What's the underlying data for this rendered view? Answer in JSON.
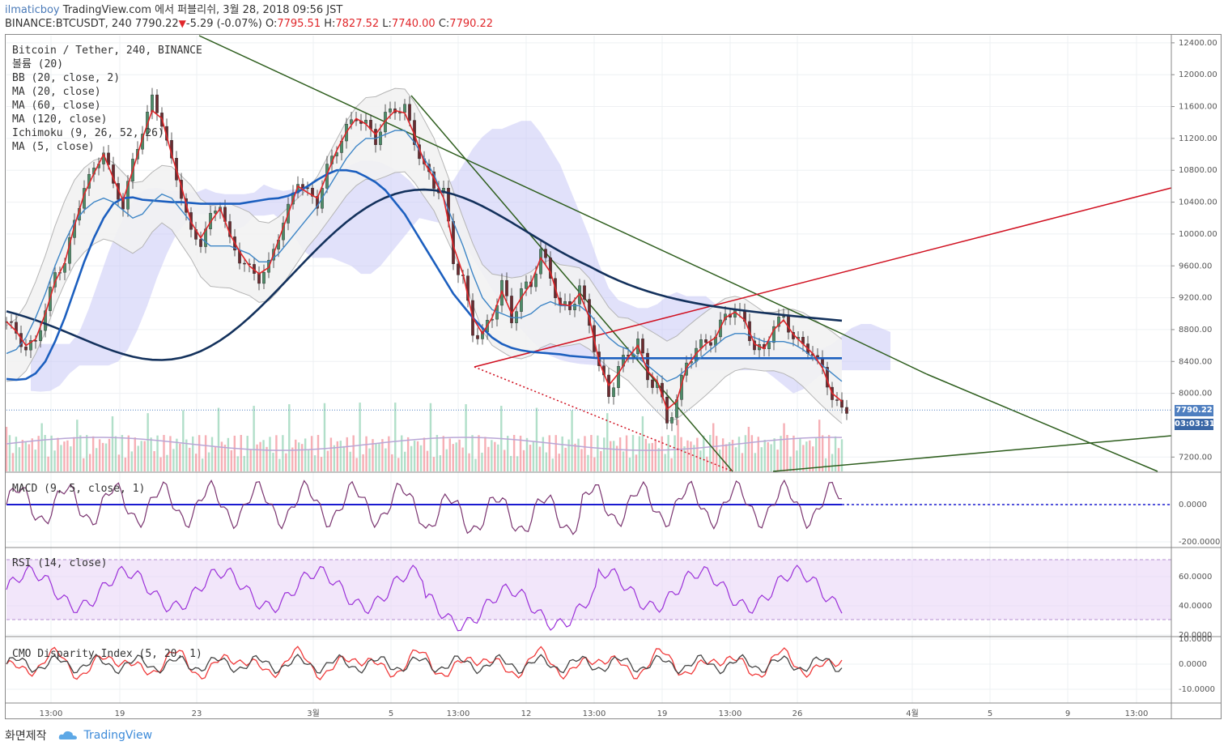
{
  "header": {
    "user": "ilmaticboy",
    "publish_text": "TradingView.com 에서 퍼블리쉬, 3월 28, 2018 09:56 JST",
    "symbol": "BINANCE:BTCUSDT, 240",
    "last": "7790.22",
    "change": "-5.29 (-0.07%)",
    "o_label": "O:",
    "o": "7795.51",
    "h_label": "H:",
    "h": "7827.52",
    "l_label": "L:",
    "l": "7740.00",
    "c_label": "C:",
    "c": "7790.22"
  },
  "legend": [
    "Bitcoin / Tether, 240, BINANCE",
    "볼륨 (20)",
    "BB (20, close, 2)",
    "MA (20, close)",
    "MA (60, close)",
    "MA (120, close)",
    "Ichimoku (9, 26, 52, 26)",
    "MA (5, close)"
  ],
  "panes": {
    "macd_label": "MACD (9, 5, close, 1)",
    "rsi_label": "RSI (14, close)",
    "cmo_label": "CMO Disparity Index (5, 20, 1)"
  },
  "price_tags": {
    "last": "7790.22",
    "countdown": "03:03:31"
  },
  "colors": {
    "up": "#53b987",
    "down": "#eb4d5c",
    "ma5": "#e0262a",
    "ma20": "#3d85c6",
    "ma60": "#1c5fbf",
    "ma120": "#13315c",
    "cloud": "#c9c9f5",
    "bb": "#b5b5b5",
    "trend_green": "#2e5e1e",
    "trend_red": "#d01020",
    "rsi": "#9b30d9",
    "macd": "#7a3470"
  },
  "chart_data": [
    {
      "type": "candlestick",
      "title": "Bitcoin / Tether, 240, BINANCE",
      "y_ticks": [
        "12400.00",
        "12000.00",
        "11600.00",
        "11200.00",
        "10800.00",
        "10400.00",
        "10000.00",
        "9600.00",
        "9200.00",
        "8800.00",
        "8400.00",
        "8000.00",
        "7200.00"
      ],
      "x_ticks": [
        "13:00",
        "19",
        "23",
        "3월",
        "5",
        "13:00",
        "12",
        "13:00",
        "19",
        "13:00",
        "26",
        "4월",
        "5",
        "9",
        "13:00"
      ],
      "ylim": [
        7020,
        12480
      ],
      "last_price": 7790.22,
      "close_path": [
        8900,
        8750,
        8550,
        8650,
        9050,
        9500,
        9650,
        10150,
        10600,
        10800,
        11050,
        10600,
        10350,
        10900,
        11300,
        11700,
        11400,
        10900,
        10500,
        10000,
        9900,
        10200,
        10400,
        9900,
        9700,
        9550,
        9450,
        9600,
        10000,
        10300,
        10700,
        10500,
        10400,
        10800,
        11100,
        11300,
        11500,
        11350,
        11200,
        11450,
        11600,
        11550,
        11200,
        10800,
        10650,
        10500,
        9700,
        9400,
        8800,
        8700,
        9000,
        9350,
        8950,
        9250,
        9400,
        9750,
        9500,
        9050,
        9100,
        9300,
        8900,
        8300,
        8000,
        8300,
        8500,
        8650,
        8200,
        8100,
        7650,
        7900,
        8400,
        8550,
        8650,
        8700,
        9000,
        9050,
        8900,
        8550,
        8550,
        8850,
        8950,
        8700,
        8600,
        8500,
        8300,
        7950,
        7790
      ],
      "ma5": [
        8900,
        8780,
        8600,
        8680,
        9000,
        9400,
        9640,
        10100,
        10500,
        10760,
        11000,
        10700,
        10420,
        10800,
        11200,
        11550,
        11450,
        11000,
        10600,
        10150,
        9950,
        10150,
        10320,
        10000,
        9780,
        9600,
        9500,
        9580,
        9920,
        10250,
        10600,
        10520,
        10450,
        10750,
        11050,
        11280,
        11450,
        11380,
        11250,
        11420,
        11550,
        11520,
        11250,
        10900,
        10700,
        10450,
        9850,
        9500,
        8950,
        8750,
        8950,
        9280,
        9000,
        9200,
        9380,
        9700,
        9520,
        9120,
        9100,
        9250,
        8950,
        8400,
        8100,
        8250,
        8450,
        8600,
        8280,
        8150,
        7800,
        7900,
        8320,
        8500,
        8620,
        8700,
        8950,
        9020,
        8920,
        8620,
        8560,
        8800,
        8920,
        8740,
        8620,
        8500,
        8320,
        8000,
        7900
      ],
      "ma20": [
        8500,
        8550,
        8700,
        8950,
        9250,
        9600,
        9900,
        10150,
        10300,
        10400,
        10450,
        10400,
        10300,
        10200,
        10250,
        10400,
        10500,
        10450,
        10300,
        10150,
        9950,
        9850,
        9850,
        9850,
        9800,
        9750,
        9650,
        9650,
        9750,
        9900,
        10050,
        10200,
        10350,
        10550,
        10750,
        10950,
        11100,
        11200,
        11200,
        11250,
        11300,
        11300,
        11150,
        10950,
        10750,
        10450,
        10150,
        9850,
        9500,
        9200,
        9050,
        9000,
        8950,
        8950,
        9000,
        9100,
        9150,
        9100,
        9100,
        9100,
        9000,
        8850,
        8700,
        8600,
        8550,
        8450,
        8350,
        8250,
        8150,
        8200,
        8300,
        8400,
        8500,
        8600,
        8700,
        8750,
        8750,
        8700,
        8650,
        8650,
        8650,
        8620,
        8550,
        8450,
        8350,
        8250,
        8150
      ],
      "ma60": [
        8180,
        8170,
        8180,
        8250,
        8400,
        8650,
        8950,
        9300,
        9650,
        9950,
        10200,
        10380,
        10450,
        10460,
        10430,
        10420,
        10410,
        10400,
        10400,
        10390,
        10380,
        10380,
        10380,
        10380,
        10380,
        10400,
        10420,
        10440,
        10450,
        10480,
        10530,
        10600,
        10680,
        10750,
        10800,
        10800,
        10780,
        10720,
        10650,
        10550,
        10400,
        10250,
        10050,
        9850,
        9650,
        9450,
        9250,
        9100,
        8950,
        8820,
        8700,
        8620,
        8570,
        8540,
        8520,
        8510,
        8500,
        8490,
        8470,
        8460,
        8450,
        8440,
        8440,
        8440,
        8440,
        8440,
        8440,
        8440,
        8440,
        8440,
        8440,
        8440,
        8440,
        8440,
        8440,
        8440,
        8440,
        8440,
        8440,
        8440,
        8440,
        8440,
        8440,
        8440,
        8440,
        8440,
        8440
      ]
    },
    {
      "type": "line",
      "title": "MACD (9, 5, close, 1)",
      "y_ticks": [
        "0.0000",
        "-200.0000"
      ]
    },
    {
      "type": "line",
      "title": "RSI (14, close)",
      "y_ticks": [
        "60.0000",
        "40.0000",
        "20.0000"
      ],
      "upper_band": 70,
      "lower_band": 30
    },
    {
      "type": "line",
      "title": "CMO Disparity Index (5, 20, 1)",
      "y_ticks": [
        "10.0000",
        "0.0000",
        "-10.0000"
      ]
    }
  ],
  "footer": {
    "capture": "화면제작",
    "brand": "TradingView"
  }
}
